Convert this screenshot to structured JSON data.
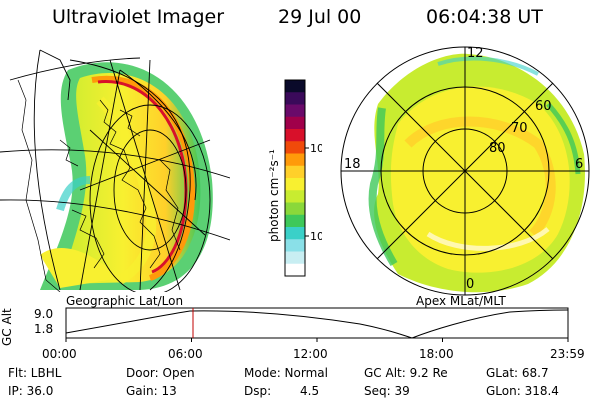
{
  "header": {
    "instrument": "Ultraviolet Imager",
    "date": "29 Jul 00",
    "time": "06:04:38 UT"
  },
  "geo_panel": {
    "label": "Geographic Lat/Lon"
  },
  "apex_panel": {
    "label": "Apex MLat/MLT",
    "lat_labels": [
      "60",
      "70",
      "80"
    ],
    "mlt_labels": {
      "top": "12",
      "left": "18",
      "right": "6",
      "bottom": "0"
    }
  },
  "colorbar": {
    "unit_label": "photon cm⁻²s⁻¹",
    "tick_labels": [
      "100",
      "10"
    ],
    "colors": [
      "#0a0a2a",
      "#3a0a5a",
      "#6a0a6a",
      "#a0004a",
      "#d8102a",
      "#f04a0a",
      "#ff9a0a",
      "#ffd02a",
      "#f8f030",
      "#c8ec30",
      "#8ad83a",
      "#3ec85a",
      "#3ad0c8",
      "#8ae0e8",
      "#c8eef2",
      "#ffffff"
    ]
  },
  "timeline": {
    "axis_title": "GC Alt",
    "y_ticks": [
      "9.0",
      "1.8"
    ],
    "x_ticks": [
      "00:00",
      "06:00",
      "12:00",
      "18:00",
      "23:59"
    ],
    "current_time_fraction": 0.253
  },
  "status": {
    "filter": "Flt: LBHL",
    "ip": "IP: 36.0",
    "door": "Door: Open",
    "gain": "Gain: 13",
    "mode": "Mode: Normal",
    "dsp_label": "Dsp:",
    "dsp_value": "4.5",
    "gc_alt": "GC Alt: 9.2 Re",
    "seq": "Seq: 39",
    "glat": "GLat: 68.7",
    "glon": "GLon: 318.4"
  }
}
